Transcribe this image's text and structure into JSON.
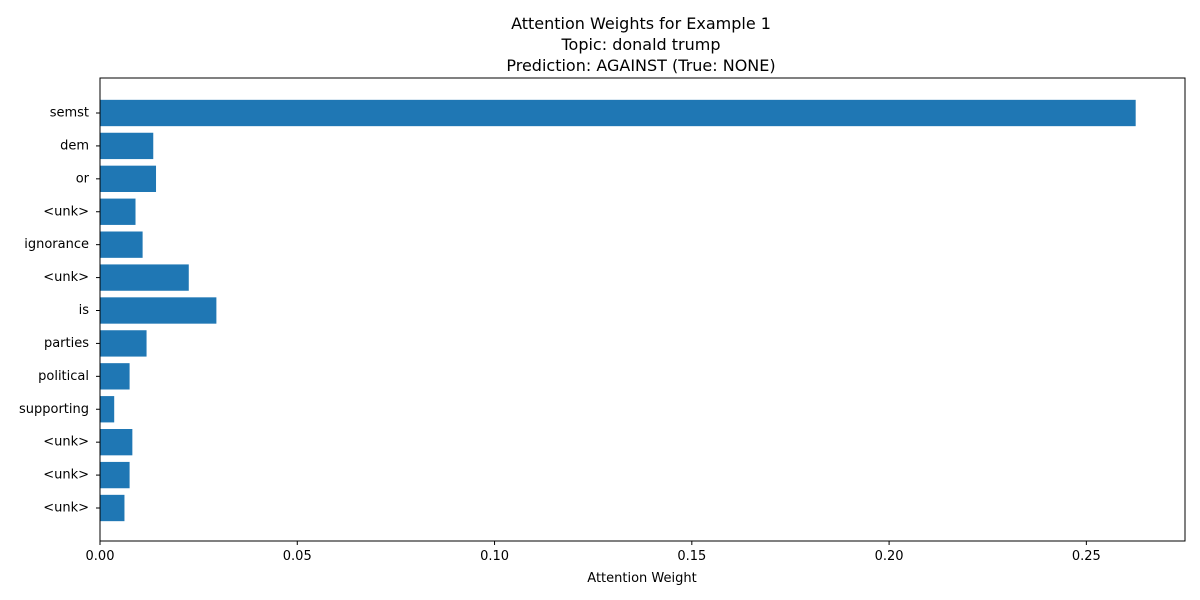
{
  "chart_data": {
    "type": "bar",
    "orientation": "horizontal",
    "title": [
      "Attention Weights for Example 1",
      "Topic: donald trump",
      "Prediction: AGAINST (True: NONE)"
    ],
    "xlabel": "Attention Weight",
    "ylabel": "",
    "categories": [
      "semst",
      "dem",
      "or",
      "<unk>",
      "ignorance",
      "<unk>",
      "is",
      "parties",
      "political",
      "supporting",
      "<unk>",
      "<unk>",
      "<unk>"
    ],
    "values": [
      0.2625,
      0.0135,
      0.0142,
      0.009,
      0.0108,
      0.0225,
      0.0295,
      0.0118,
      0.0075,
      0.0036,
      0.0082,
      0.0075,
      0.0062
    ],
    "xlim": [
      0.0,
      0.275
    ],
    "xticks": [
      0.0,
      0.05,
      0.1,
      0.15,
      0.2,
      0.25
    ],
    "xtick_labels": [
      "0.00",
      "0.05",
      "0.10",
      "0.15",
      "0.20",
      "0.25"
    ],
    "bar_color": "#1f77b4",
    "grid": false,
    "legend": "none"
  }
}
